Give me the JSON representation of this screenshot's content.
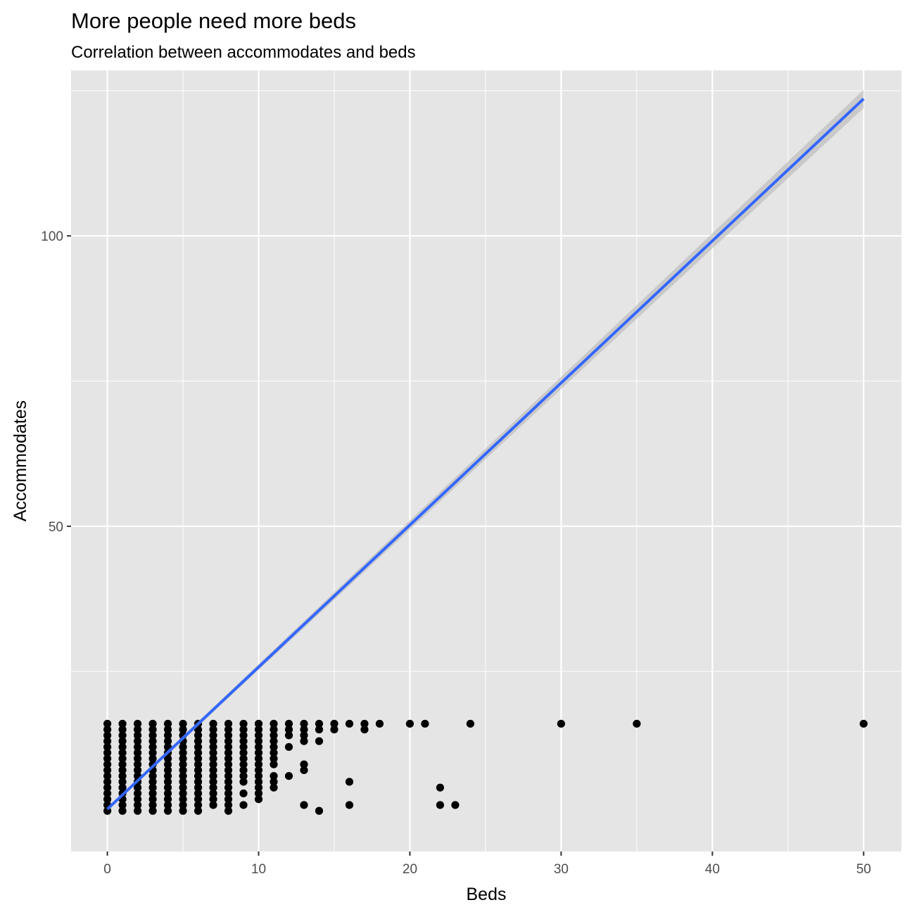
{
  "chart_data": {
    "type": "scatter",
    "title": "More people need more beds",
    "subtitle": "Correlation between accommodates and beds",
    "xlabel": "Beds",
    "ylabel": "Accommodates",
    "xlim": [
      -2.4,
      52.5
    ],
    "ylim": [
      -6,
      128.5
    ],
    "x_ticks": [
      0,
      10,
      20,
      30,
      40,
      50
    ],
    "y_ticks": [
      50,
      100
    ],
    "grid": true,
    "colors": {
      "panel": "#e5e5e5",
      "grid": "#ffffff",
      "points": "#000000",
      "trend": "#3366ff",
      "band": "#b3b3b3"
    },
    "trend_line": {
      "x": [
        0,
        50
      ],
      "y": [
        1.3,
        123.6
      ],
      "confidence_band": true
    },
    "points_by_x": [
      {
        "x": 0,
        "y": [
          1,
          2,
          3,
          4,
          5,
          6,
          7,
          8,
          9,
          10,
          11,
          12,
          13,
          14,
          15,
          16
        ]
      },
      {
        "x": 1,
        "y": [
          1,
          2,
          3,
          4,
          5,
          6,
          7,
          8,
          9,
          10,
          11,
          12,
          13,
          14,
          15,
          16
        ]
      },
      {
        "x": 2,
        "y": [
          1,
          2,
          3,
          4,
          5,
          6,
          7,
          8,
          9,
          10,
          11,
          12,
          13,
          14,
          15,
          16
        ]
      },
      {
        "x": 3,
        "y": [
          1,
          2,
          3,
          4,
          5,
          6,
          7,
          8,
          9,
          10,
          11,
          12,
          13,
          14,
          15,
          16
        ]
      },
      {
        "x": 4,
        "y": [
          1,
          2,
          3,
          4,
          5,
          6,
          7,
          8,
          9,
          10,
          11,
          12,
          13,
          14,
          15,
          16
        ]
      },
      {
        "x": 5,
        "y": [
          1,
          2,
          3,
          4,
          5,
          6,
          7,
          8,
          9,
          10,
          11,
          12,
          13,
          14,
          15,
          16
        ]
      },
      {
        "x": 6,
        "y": [
          1,
          2,
          3,
          4,
          5,
          6,
          7,
          8,
          9,
          10,
          11,
          12,
          13,
          14,
          15,
          16
        ]
      },
      {
        "x": 7,
        "y": [
          2,
          3,
          4,
          5,
          6,
          7,
          8,
          9,
          10,
          11,
          12,
          13,
          14,
          15,
          16
        ]
      },
      {
        "x": 8,
        "y": [
          1,
          2,
          3,
          4,
          5,
          6,
          7,
          8,
          9,
          10,
          11,
          12,
          13,
          14,
          15,
          16
        ]
      },
      {
        "x": 9,
        "y": [
          2,
          4,
          6,
          7,
          8,
          9,
          10,
          11,
          12,
          13,
          14,
          15,
          16
        ]
      },
      {
        "x": 10,
        "y": [
          3,
          4,
          5,
          6,
          7,
          8,
          9,
          10,
          11,
          12,
          13,
          14,
          15,
          16
        ]
      },
      {
        "x": 11,
        "y": [
          5,
          6,
          7,
          9,
          10,
          11,
          12,
          13,
          14,
          15,
          16
        ]
      },
      {
        "x": 12,
        "y": [
          7,
          12,
          14,
          15,
          16
        ]
      },
      {
        "x": 13,
        "y": [
          2,
          8,
          9,
          13,
          14,
          15,
          16
        ]
      },
      {
        "x": 14,
        "y": [
          1,
          13,
          15,
          16
        ]
      },
      {
        "x": 15,
        "y": [
          15,
          16
        ]
      },
      {
        "x": 16,
        "y": [
          2,
          6,
          16
        ]
      },
      {
        "x": 17,
        "y": [
          15,
          16
        ]
      },
      {
        "x": 18,
        "y": [
          16
        ]
      },
      {
        "x": 20,
        "y": [
          16
        ]
      },
      {
        "x": 21,
        "y": [
          16
        ]
      },
      {
        "x": 22,
        "y": [
          2,
          5
        ]
      },
      {
        "x": 23,
        "y": [
          2
        ]
      },
      {
        "x": 24,
        "y": [
          16
        ]
      },
      {
        "x": 30,
        "y": [
          16
        ]
      },
      {
        "x": 35,
        "y": [
          16
        ]
      },
      {
        "x": 50,
        "y": [
          16
        ]
      }
    ]
  }
}
